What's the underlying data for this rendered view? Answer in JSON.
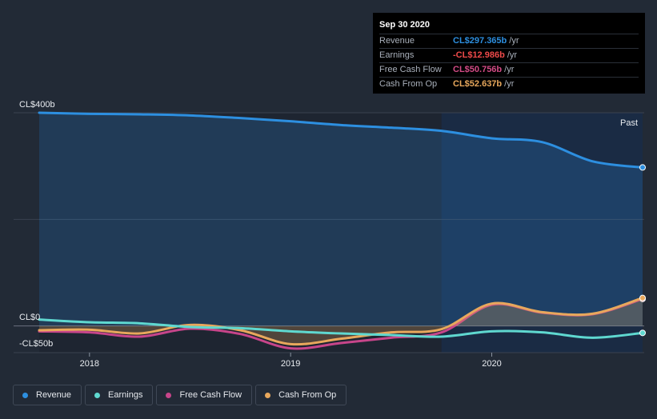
{
  "tooltip": {
    "date": "Sep 30 2020",
    "rows": [
      {
        "label": "Revenue",
        "value": "CL$297.365b",
        "unit": "/yr",
        "color": "#2d8fe0"
      },
      {
        "label": "Earnings",
        "value": "-CL$12.986b",
        "unit": "/yr",
        "color": "#ef4a4a"
      },
      {
        "label": "Free Cash Flow",
        "value": "CL$50.756b",
        "unit": "/yr",
        "color": "#d34b86"
      },
      {
        "label": "Cash From Op",
        "value": "CL$52.637b",
        "unit": "/yr",
        "color": "#e8a85c"
      }
    ]
  },
  "legend": [
    {
      "label": "Revenue",
      "color": "#2d8fe0"
    },
    {
      "label": "Earnings",
      "color": "#5fd8d0"
    },
    {
      "label": "Free Cash Flow",
      "color": "#c7458a"
    },
    {
      "label": "Cash From Op",
      "color": "#e8a85c"
    }
  ],
  "chart_data": {
    "type": "line",
    "x_start": 2017.75,
    "x_end": 2020.75,
    "past_from": 2019.75,
    "past_label": "Past",
    "ylim": [
      -50,
      400
    ],
    "y_ticks": [
      {
        "value": 400,
        "label": "CL$400b"
      },
      {
        "value": 0,
        "label": "CL$0"
      },
      {
        "value": -50,
        "label": "-CL$50b"
      }
    ],
    "x_ticks": [
      {
        "value": 2018,
        "label": "2018"
      },
      {
        "value": 2019,
        "label": "2019"
      },
      {
        "value": 2020,
        "label": "2020"
      }
    ],
    "series": [
      {
        "name": "Revenue",
        "color": "#2d8fe0",
        "fill": true,
        "x": [
          2017.75,
          2018.0,
          2018.25,
          2018.5,
          2018.75,
          2019.0,
          2019.25,
          2019.5,
          2019.75,
          2020.0,
          2020.25,
          2020.5,
          2020.75
        ],
        "values": [
          400,
          398,
          397,
          395,
          390,
          384,
          377,
          372,
          366,
          352,
          345,
          309,
          297.365
        ]
      },
      {
        "name": "Free Cash Flow",
        "color": "#c7458a",
        "fill": false,
        "x": [
          2017.75,
          2018.0,
          2018.25,
          2018.5,
          2018.75,
          2019.0,
          2019.25,
          2019.5,
          2019.75,
          2020.0,
          2020.25,
          2020.5,
          2020.75
        ],
        "values": [
          -10,
          -12,
          -20,
          -5,
          -15,
          -42,
          -32,
          -22,
          -12,
          40,
          25,
          22,
          50.756
        ]
      },
      {
        "name": "Cash From Op",
        "color": "#e8a85c",
        "fill": true,
        "x": [
          2017.75,
          2018.0,
          2018.25,
          2018.5,
          2018.75,
          2019.0,
          2019.25,
          2019.5,
          2019.75,
          2020.0,
          2020.25,
          2020.5,
          2020.75
        ],
        "values": [
          -8,
          -7,
          -14,
          2,
          -8,
          -34,
          -24,
          -12,
          -6,
          42,
          26,
          23,
          52.637
        ]
      },
      {
        "name": "Earnings",
        "color": "#5fd8d0",
        "fill": false,
        "x": [
          2017.75,
          2018.0,
          2018.25,
          2018.5,
          2018.75,
          2019.0,
          2019.25,
          2019.5,
          2019.75,
          2020.0,
          2020.25,
          2020.5,
          2020.75
        ],
        "values": [
          12,
          7,
          5,
          -2,
          -4,
          -10,
          -14,
          -17,
          -20,
          -10,
          -12,
          -22,
          -12.986
        ]
      }
    ]
  }
}
